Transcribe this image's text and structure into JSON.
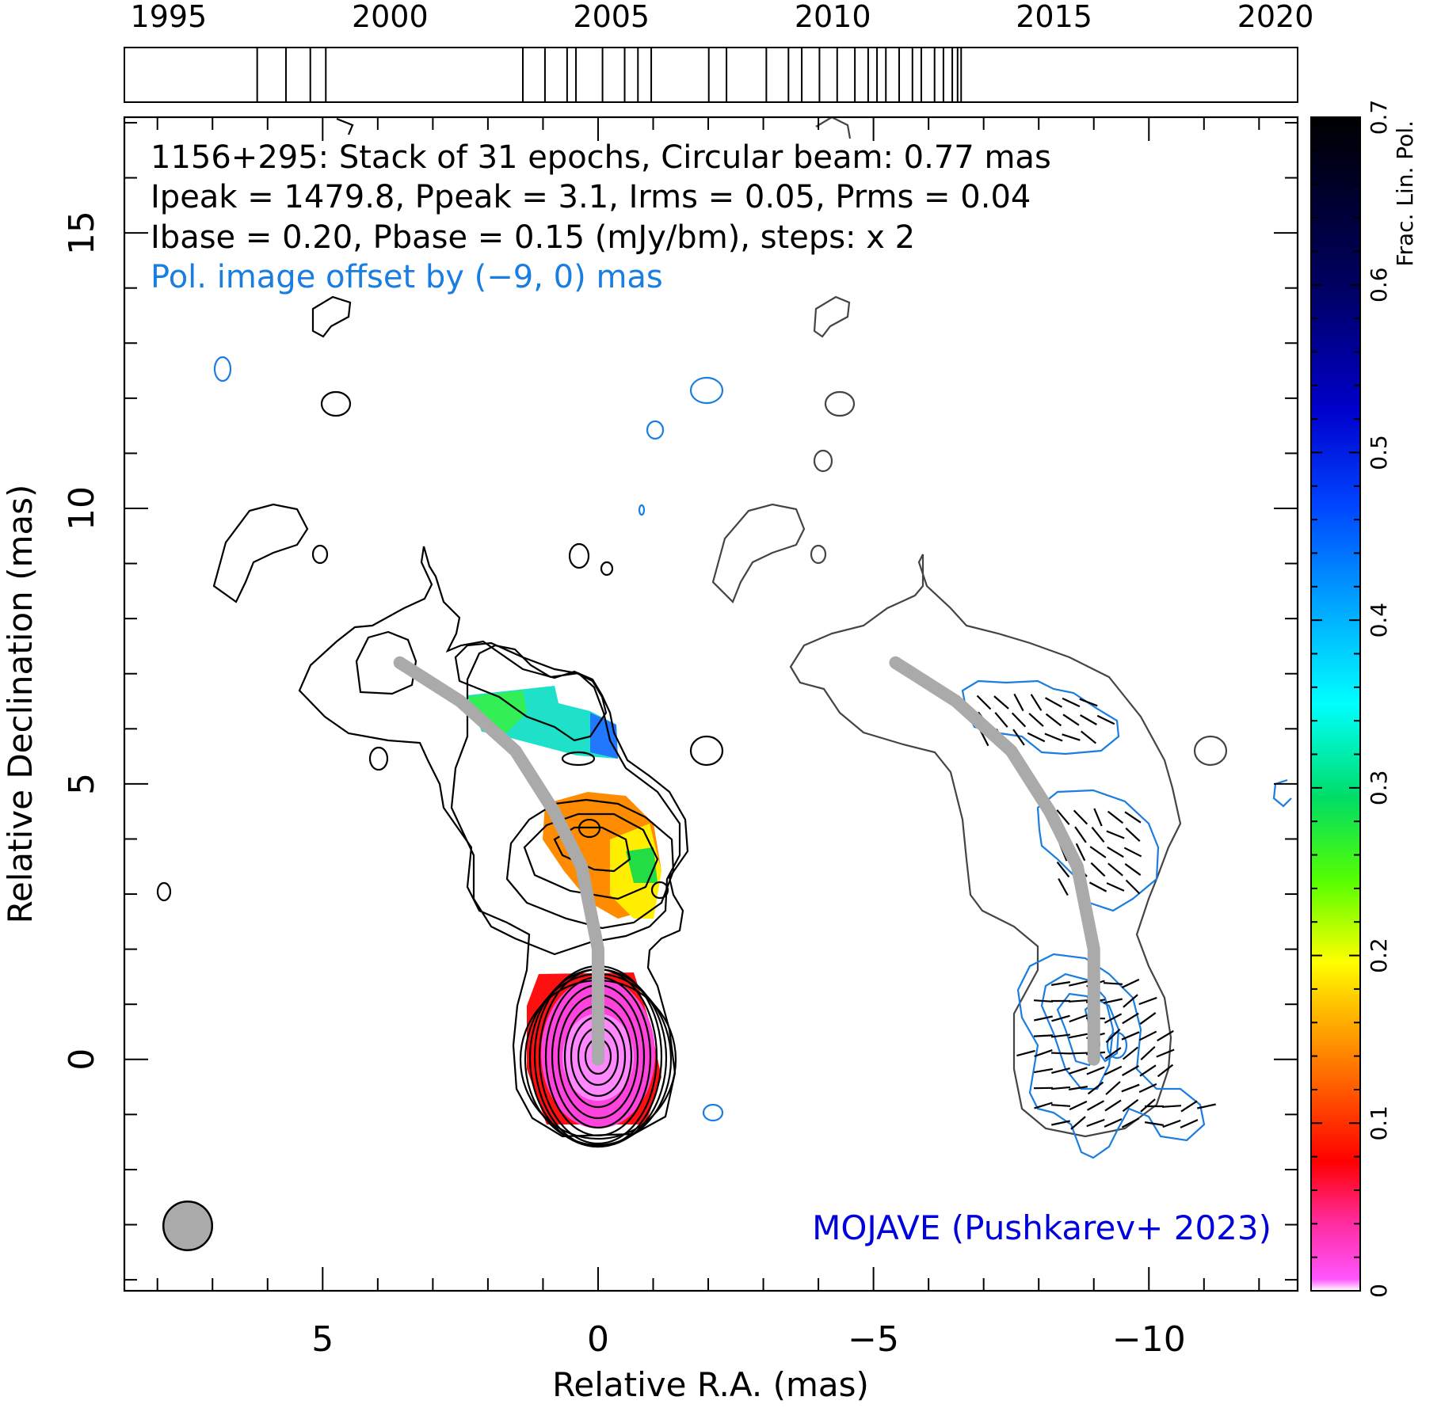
{
  "chart_data": {
    "type": "other",
    "title_lines": [
      "1156+295: Stack of 31 epochs, Circular beam: 0.77 mas",
      "Ipeak = 1479.8, Ppeak = 3.1, Irms = 0.05, Prms = 0.04",
      "Ibase = 0.20, Pbase = 0.15 (mJy/bm), steps: x 2"
    ],
    "offset_note": "Pol. image offset by (−9, 0) mas",
    "credit": "MOJAVE (Pushkarev+ 2023)",
    "xlabel": "Relative R.A. (mas)",
    "ylabel": "Relative Declination (mas)",
    "x_range": [
      8.6,
      -12.7
    ],
    "y_range": [
      -4.2,
      17.1
    ],
    "x_ticks": [
      "5",
      "0",
      "−5",
      "−10"
    ],
    "y_ticks": [
      "0",
      "5",
      "10",
      "15"
    ],
    "colorbar": {
      "label": "Frac. Lin. Pol.",
      "range": [
        0,
        0.7
      ],
      "ticks": [
        "0",
        "0.1",
        "0.2",
        "0.3",
        "0.4",
        "0.5",
        "0.6",
        "0.7"
      ]
    },
    "epoch_timeline": {
      "range": [
        1994,
        2020.5
      ],
      "tick_labels": [
        "1995",
        "2000",
        "2005",
        "2010",
        "2015",
        "2020"
      ],
      "epochs": [
        1997.0,
        1997.65,
        1998.2,
        1998.55,
        2003.0,
        2003.5,
        2004.0,
        2004.2,
        2004.8,
        2005.3,
        2005.6,
        2005.9,
        2007.2,
        2007.6,
        2008.5,
        2009.0,
        2009.3,
        2009.7,
        2010.1,
        2010.5,
        2010.8,
        2011.0,
        2011.2,
        2011.5,
        2011.8,
        2012.0,
        2012.3,
        2012.5,
        2012.7,
        2012.82,
        2012.9
      ]
    },
    "beam_fwhm_mas": 0.77,
    "ridge_line": {
      "points": [
        [
          0,
          0
        ],
        [
          0,
          2
        ],
        [
          0.3,
          3.5
        ],
        [
          0.8,
          4.5
        ],
        [
          1.5,
          5.6
        ],
        [
          2.5,
          6.5
        ],
        [
          3.6,
          7.2
        ]
      ],
      "pol_offset_x": -9
    }
  }
}
